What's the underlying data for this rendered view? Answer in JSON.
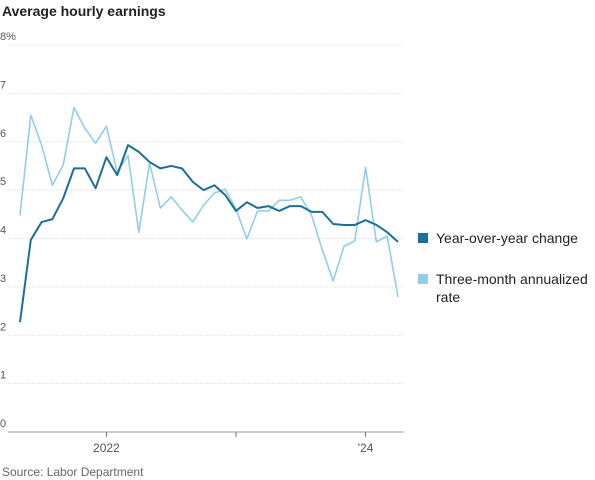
{
  "chart_data": {
    "type": "line",
    "title": "Average hourly earnings",
    "source": "Source: Labor Department",
    "categories": [
      null,
      null,
      null,
      null,
      null,
      null,
      null,
      null,
      "2022",
      null,
      null,
      null,
      null,
      null,
      null,
      null,
      null,
      null,
      null,
      null,
      null,
      null,
      null,
      null,
      null,
      null,
      null,
      null,
      null,
      null,
      null,
      null,
      "'24",
      null,
      null,
      null
    ],
    "xticks": [
      8,
      20,
      32
    ],
    "series": [
      {
        "name": "Year-over-year change",
        "color": "#1b6f98",
        "values": [
          2.27,
          3.97,
          4.34,
          4.4,
          4.83,
          5.45,
          5.45,
          5.04,
          5.68,
          5.31,
          5.93,
          5.79,
          5.58,
          5.45,
          5.5,
          5.45,
          5.17,
          5.0,
          5.1,
          4.9,
          4.57,
          4.75,
          4.63,
          4.67,
          4.57,
          4.67,
          4.67,
          4.55,
          4.55,
          4.3,
          4.28,
          4.28,
          4.38,
          4.28,
          4.13,
          3.93
        ]
      },
      {
        "name": "Three-month annualized rate",
        "color": "#92cdea",
        "values": [
          4.48,
          6.55,
          5.93,
          5.1,
          5.52,
          6.71,
          6.28,
          5.97,
          6.32,
          5.37,
          5.72,
          4.13,
          5.56,
          4.63,
          4.86,
          4.59,
          4.34,
          4.69,
          4.94,
          5.02,
          4.61,
          3.99,
          4.57,
          4.57,
          4.79,
          4.79,
          4.86,
          4.48,
          3.76,
          3.12,
          3.84,
          3.95,
          5.47,
          3.93,
          4.05,
          2.79
        ]
      }
    ],
    "ylim": [
      0,
      8
    ],
    "yticks": [
      0,
      1,
      2,
      3,
      4,
      5,
      6,
      7,
      {
        "value": 8,
        "label": "8%"
      }
    ],
    "grid": true
  }
}
